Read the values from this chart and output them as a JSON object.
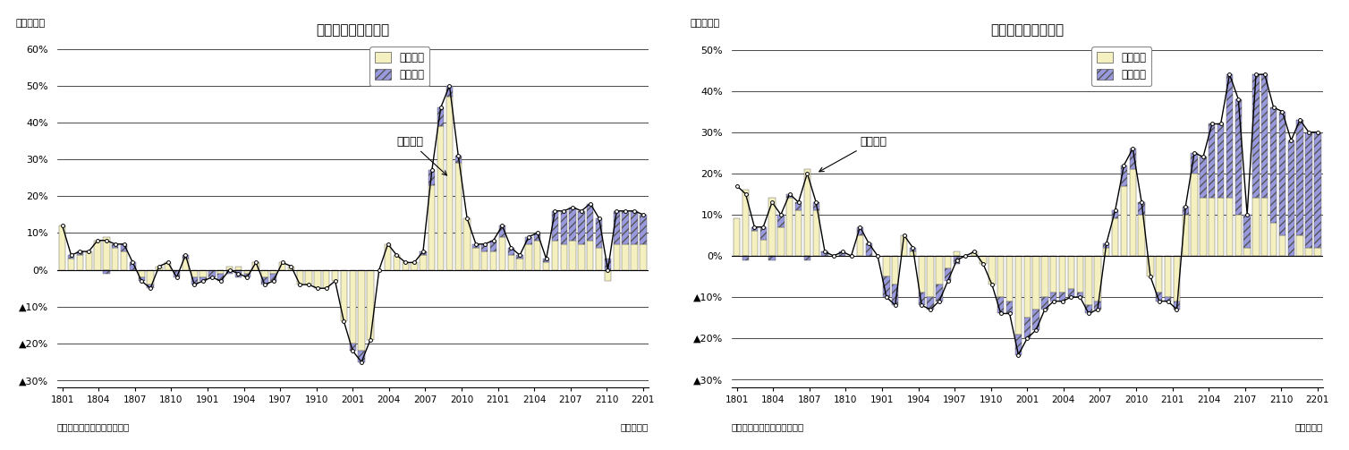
{
  "title_left": "輸出金額の要因分解",
  "title_right": "輸入金額の要因分解",
  "ylabel": "（前年比）",
  "xlabel": "（年・月）",
  "source": "（資料）財務省「貿易統計」",
  "legend_qty": "数量要因",
  "legend_price": "価格要因",
  "annotation_left": "輸出金額",
  "annotation_right": "輸入金額",
  "xtick_labels": [
    "1801",
    "1804",
    "1807",
    "1810",
    "1901",
    "1904",
    "1907",
    "1910",
    "2001",
    "2004",
    "2007",
    "2010",
    "2101",
    "2104",
    "2107",
    "2110",
    "2201"
  ],
  "ylim_left": [
    -32,
    62
  ],
  "ylim_right": [
    -32,
    52
  ],
  "yticks_left": [
    -30,
    -20,
    -10,
    0,
    10,
    20,
    30,
    40,
    50,
    60
  ],
  "yticks_right": [
    -30,
    -20,
    -10,
    0,
    10,
    20,
    30,
    40,
    50
  ],
  "color_qty": "#f5f0c0",
  "color_price_fill": "#9999dd",
  "color_line": "#000000",
  "bar_edge_color": "#555555",
  "hatch_price": "////",
  "left_qty": [
    12,
    3,
    4,
    5,
    8,
    9,
    6,
    5,
    0,
    -2,
    -4,
    1,
    2,
    0,
    3,
    -2,
    -2,
    0,
    -1,
    1,
    1,
    -1,
    2,
    -2,
    -1,
    2,
    1,
    -4,
    -4,
    -5,
    -5,
    -3,
    -14,
    -20,
    -22,
    -19,
    0,
    7,
    4,
    2,
    2,
    4,
    23,
    39,
    47,
    29,
    14,
    6,
    5,
    5,
    9,
    4,
    3,
    7,
    8,
    2,
    8,
    7,
    8,
    7,
    8,
    6,
    -3,
    7,
    7,
    7,
    7
  ],
  "left_price": [
    0,
    1,
    1,
    0,
    0,
    -1,
    1,
    2,
    2,
    -1,
    -1,
    0,
    0,
    -2,
    1,
    -2,
    -1,
    -2,
    -2,
    -1,
    -2,
    -1,
    0,
    -2,
    -2,
    0,
    0,
    0,
    0,
    0,
    0,
    0,
    0,
    -2,
    -3,
    0,
    0,
    0,
    0,
    0,
    0,
    1,
    4,
    5,
    3,
    2,
    0,
    1,
    2,
    3,
    3,
    2,
    1,
    2,
    2,
    1,
    8,
    9,
    9,
    9,
    10,
    8,
    3,
    9,
    9,
    9,
    8
  ],
  "left_line": [
    12,
    4,
    5,
    5,
    8,
    8,
    7,
    7,
    2,
    -3,
    -5,
    1,
    2,
    -2,
    4,
    -4,
    -3,
    -2,
    -3,
    0,
    -1,
    -2,
    2,
    -4,
    -3,
    2,
    1,
    -4,
    -4,
    -5,
    -5,
    -3,
    -14,
    -22,
    -25,
    -19,
    0,
    7,
    4,
    2,
    2,
    5,
    27,
    44,
    50,
    31,
    14,
    7,
    7,
    8,
    12,
    6,
    4,
    9,
    10,
    3,
    16,
    16,
    17,
    16,
    18,
    14,
    0,
    16,
    16,
    16,
    15
  ],
  "right_qty": [
    9,
    16,
    6,
    4,
    14,
    7,
    14,
    11,
    21,
    11,
    0,
    0,
    0,
    0,
    5,
    0,
    0,
    -5,
    -7,
    5,
    1,
    -9,
    -10,
    -7,
    -3,
    1,
    0,
    1,
    -2,
    -7,
    -10,
    -11,
    -19,
    -15,
    -13,
    -10,
    -9,
    -9,
    -8,
    -9,
    -12,
    -11,
    2,
    9,
    17,
    21,
    10,
    -5,
    -9,
    -10,
    -11,
    10,
    20,
    14,
    14,
    14,
    14,
    10,
    2,
    14,
    14,
    8,
    5,
    0,
    5,
    2,
    2
  ],
  "right_price": [
    0,
    -1,
    1,
    3,
    -1,
    3,
    1,
    2,
    -1,
    2,
    1,
    0,
    1,
    0,
    2,
    3,
    0,
    -5,
    -5,
    0,
    1,
    -3,
    -3,
    -4,
    -3,
    -2,
    0,
    0,
    0,
    0,
    -4,
    -3,
    -5,
    -5,
    -5,
    -3,
    -2,
    -2,
    -2,
    -1,
    -2,
    -2,
    1,
    2,
    5,
    5,
    3,
    0,
    -2,
    -1,
    -2,
    2,
    5,
    10,
    18,
    18,
    30,
    28,
    8,
    30,
    30,
    28,
    30,
    28,
    28,
    28,
    28
  ],
  "right_line": [
    17,
    15,
    7,
    7,
    13,
    10,
    15,
    13,
    20,
    13,
    1,
    0,
    1,
    0,
    7,
    3,
    0,
    -10,
    -12,
    5,
    2,
    -12,
    -13,
    -11,
    -6,
    -1,
    0,
    1,
    -2,
    -7,
    -14,
    -14,
    -24,
    -20,
    -18,
    -13,
    -11,
    -11,
    -10,
    -10,
    -14,
    -13,
    3,
    11,
    22,
    26,
    13,
    -5,
    -11,
    -11,
    -13,
    12,
    25,
    24,
    32,
    32,
    44,
    38,
    10,
    44,
    44,
    36,
    35,
    28,
    33,
    30,
    30
  ],
  "n_bars": 67
}
